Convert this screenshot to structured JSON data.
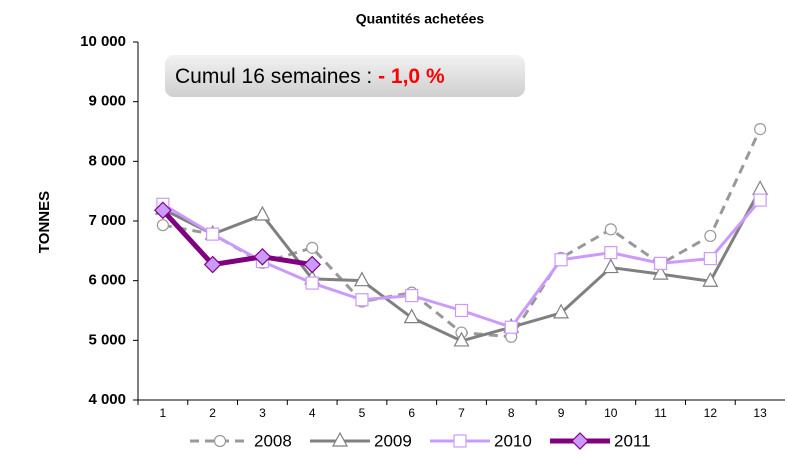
{
  "chart_data": {
    "type": "line",
    "title": "Quantités achetées",
    "ylabel": "TONNES",
    "annotation": {
      "text": "Cumul 16 semaines : ",
      "highlight": "- 1,0 %",
      "highlight_color": "#ff0000"
    },
    "categories": [
      "1",
      "2",
      "3",
      "4",
      "5",
      "6",
      "7",
      "8",
      "9",
      "10",
      "11",
      "12",
      "13"
    ],
    "series": [
      {
        "name": "2008",
        "color": "#999999",
        "marker": "circle",
        "dashed": true,
        "values": [
          6930,
          6780,
          6300,
          6550,
          5650,
          5800,
          5130,
          5060,
          6380,
          6860,
          6280,
          6750,
          8540
        ]
      },
      {
        "name": "2009",
        "color": "#808080",
        "marker": "triangle",
        "dashed": false,
        "values": [
          7200,
          6780,
          7100,
          6030,
          6000,
          5380,
          4990,
          5220,
          5460,
          6220,
          6110,
          5990,
          7530
        ]
      },
      {
        "name": "2010",
        "color": "#cc99ff",
        "marker": "square",
        "dashed": false,
        "values": [
          7280,
          6780,
          6320,
          5960,
          5680,
          5750,
          5500,
          5220,
          6350,
          6470,
          6290,
          6370,
          7350
        ]
      },
      {
        "name": "2011",
        "color": "#800080",
        "marker": "diamond",
        "dashed": false,
        "values": [
          7180,
          6270,
          6400,
          6270,
          null,
          null,
          null,
          null,
          null,
          null,
          null,
          null,
          null
        ]
      }
    ],
    "ylim": [
      4000,
      10000
    ],
    "yticks": [
      {
        "value": 4000,
        "label": "4 000"
      },
      {
        "value": 5000,
        "label": "5 000"
      },
      {
        "value": 6000,
        "label": "6 000"
      },
      {
        "value": 7000,
        "label": "7 000"
      },
      {
        "value": 8000,
        "label": "8 000"
      },
      {
        "value": 9000,
        "label": "9 000"
      },
      {
        "value": 10000,
        "label": "10 000"
      }
    ],
    "legend": "bottom"
  }
}
